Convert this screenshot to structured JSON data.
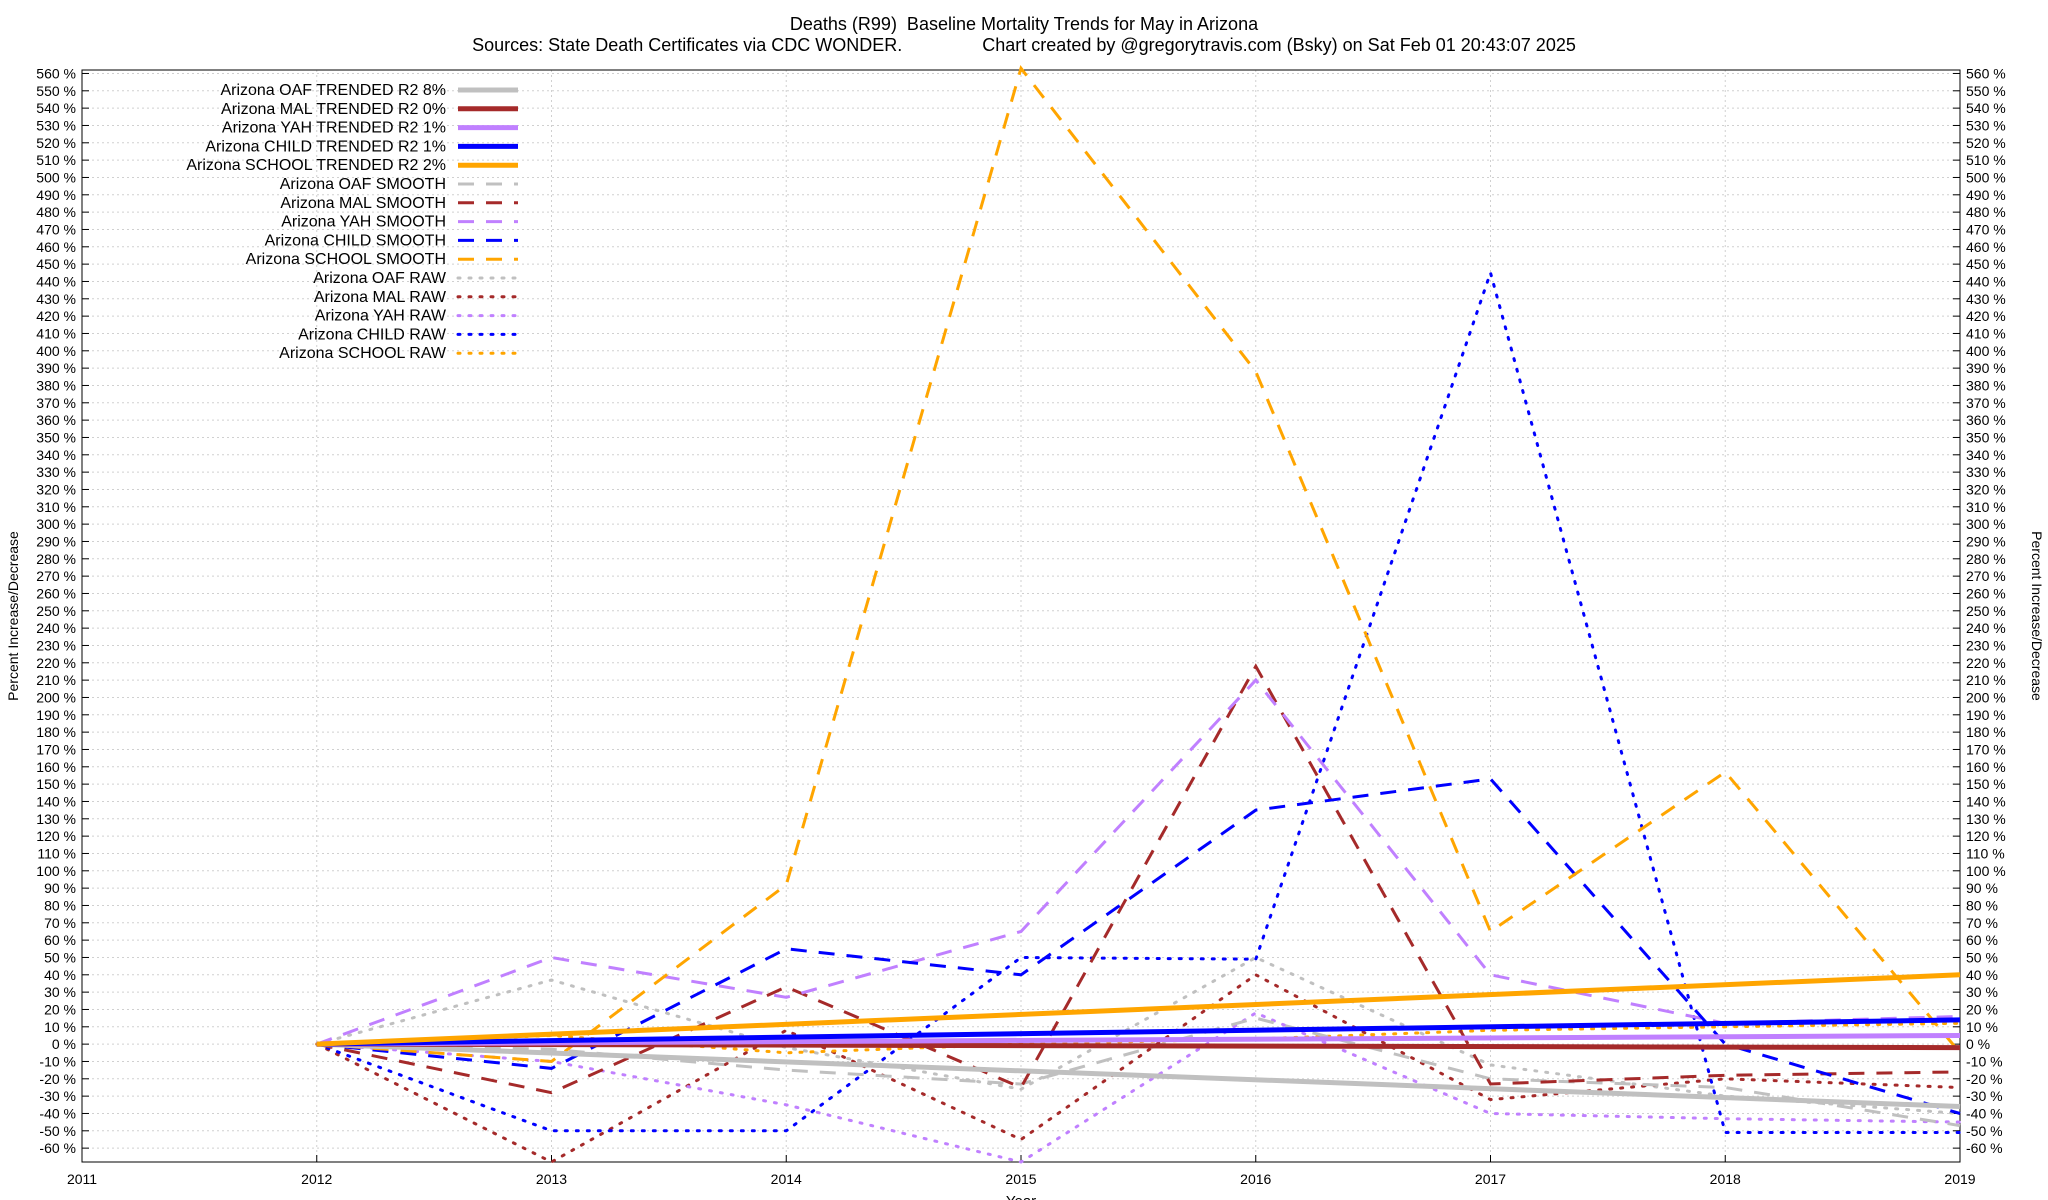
{
  "chart_data": {
    "type": "line",
    "title": "Deaths (R99)  Baseline Mortality Trends for May in Arizona",
    "subtitle": "Sources: State Death Certificates via CDC WONDER.                Chart created by @gregorytravis.com (Bsky) on Sat Feb 01 20:43:07 2025",
    "xlabel": "Year",
    "ylabel": "Percent Increase/Decrease",
    "xlim": [
      2011,
      2019
    ],
    "ylim": [
      -68,
      562
    ],
    "x_ticks": [
      "2011",
      "2012",
      "2013",
      "2014",
      "2015",
      "2016",
      "2017",
      "2018",
      "2019"
    ],
    "y_ticks": [
      -60,
      -50,
      -40,
      -30,
      -20,
      -10,
      0,
      10,
      20,
      30,
      40,
      50,
      60,
      70,
      80,
      90,
      100,
      110,
      120,
      130,
      140,
      150,
      160,
      170,
      180,
      190,
      200,
      210,
      220,
      230,
      240,
      250,
      260,
      270,
      280,
      290,
      300,
      310,
      320,
      330,
      340,
      350,
      360,
      370,
      380,
      390,
      400,
      410,
      420,
      430,
      440,
      450,
      460,
      470,
      480,
      490,
      500,
      510,
      520,
      530,
      540,
      550,
      560
    ],
    "y_tick_suffix": " %",
    "grid": true,
    "legend_position": "top-left",
    "series": [
      {
        "name": "Arizona OAF TRENDED R2  8%",
        "color": "#c0c0c0",
        "style": "solid",
        "x": [
          2012,
          2019
        ],
        "y": [
          0,
          -36
        ]
      },
      {
        "name": "Arizona MAL TRENDED R2  0%",
        "color": "#a52a2a",
        "style": "solid",
        "x": [
          2012,
          2019
        ],
        "y": [
          0,
          -2
        ]
      },
      {
        "name": "Arizona YAH TRENDED R2  1%",
        "color": "#c080ff",
        "style": "solid",
        "x": [
          2012,
          2019
        ],
        "y": [
          0,
          5
        ]
      },
      {
        "name": "Arizona CHILD TRENDED R2  1%",
        "color": "#0000ff",
        "style": "solid",
        "x": [
          2012,
          2019
        ],
        "y": [
          0,
          14
        ]
      },
      {
        "name": "Arizona SCHOOL TRENDED R2  2%",
        "color": "#ffa500",
        "style": "solid",
        "x": [
          2012,
          2019
        ],
        "y": [
          0,
          40
        ]
      },
      {
        "name": "Arizona OAF SMOOTH",
        "color": "#c0c0c0",
        "style": "dashed",
        "x": [
          2012,
          2013,
          2014,
          2015,
          2016,
          2017,
          2018,
          2019
        ],
        "y": [
          0,
          -3,
          -15,
          -23,
          15,
          -20,
          -25,
          -47
        ]
      },
      {
        "name": "Arizona MAL SMOOTH",
        "color": "#a52a2a",
        "style": "dashed",
        "x": [
          2012,
          2013,
          2014,
          2015,
          2016,
          2017,
          2018,
          2019
        ],
        "y": [
          0,
          -28,
          33,
          -25,
          218,
          -23,
          -18,
          -16
        ]
      },
      {
        "name": "Arizona YAH SMOOTH",
        "color": "#c080ff",
        "style": "dashed",
        "x": [
          2012,
          2013,
          2014,
          2015,
          2016,
          2017,
          2018,
          2019
        ],
        "y": [
          0,
          50,
          27,
          65,
          210,
          40,
          12,
          16
        ]
      },
      {
        "name": "Arizona CHILD SMOOTH",
        "color": "#0000ff",
        "style": "dashed",
        "x": [
          2012,
          2013,
          2014,
          2015,
          2016,
          2017,
          2018,
          2019
        ],
        "y": [
          0,
          -14,
          55,
          40,
          135,
          153,
          0,
          -40
        ]
      },
      {
        "name": "Arizona SCHOOL SMOOTH",
        "color": "#ffa500",
        "style": "dashed",
        "x": [
          2012,
          2013,
          2014,
          2015,
          2016,
          2017,
          2018,
          2019
        ],
        "y": [
          0,
          -10,
          92,
          563,
          388,
          65,
          157,
          -5
        ]
      },
      {
        "name": "Arizona OAF RAW",
        "color": "#c0c0c0",
        "style": "dotted",
        "x": [
          2012,
          2013,
          2014,
          2015,
          2016,
          2017,
          2018,
          2019
        ],
        "y": [
          0,
          37,
          -2,
          -26,
          50,
          -12,
          -30,
          -40
        ]
      },
      {
        "name": "Arizona MAL RAW",
        "color": "#a52a2a",
        "style": "dotted",
        "x": [
          2012,
          2013,
          2014,
          2015,
          2016,
          2017,
          2018,
          2019
        ],
        "y": [
          0,
          -68,
          8,
          -55,
          40,
          -32,
          -20,
          -25
        ]
      },
      {
        "name": "Arizona YAH RAW",
        "color": "#c080ff",
        "style": "dotted",
        "x": [
          2012,
          2013,
          2014,
          2015,
          2016,
          2017,
          2018,
          2019
        ],
        "y": [
          0,
          -10,
          -35,
          -68,
          18,
          -40,
          -43,
          -45
        ]
      },
      {
        "name": "Arizona CHILD RAW",
        "color": "#0000ff",
        "style": "dotted",
        "x": [
          2012,
          2013,
          2014,
          2015,
          2016,
          2017,
          2018,
          2019
        ],
        "y": [
          0,
          -50,
          -50,
          50,
          49,
          445,
          -51,
          -51
        ]
      },
      {
        "name": "Arizona SCHOOL RAW",
        "color": "#ffa500",
        "style": "dotted",
        "x": [
          2012,
          2013,
          2014,
          2015,
          2016,
          2017,
          2018,
          2019
        ],
        "y": [
          0,
          5,
          -5,
          0,
          3,
          8,
          10,
          12
        ]
      }
    ]
  }
}
